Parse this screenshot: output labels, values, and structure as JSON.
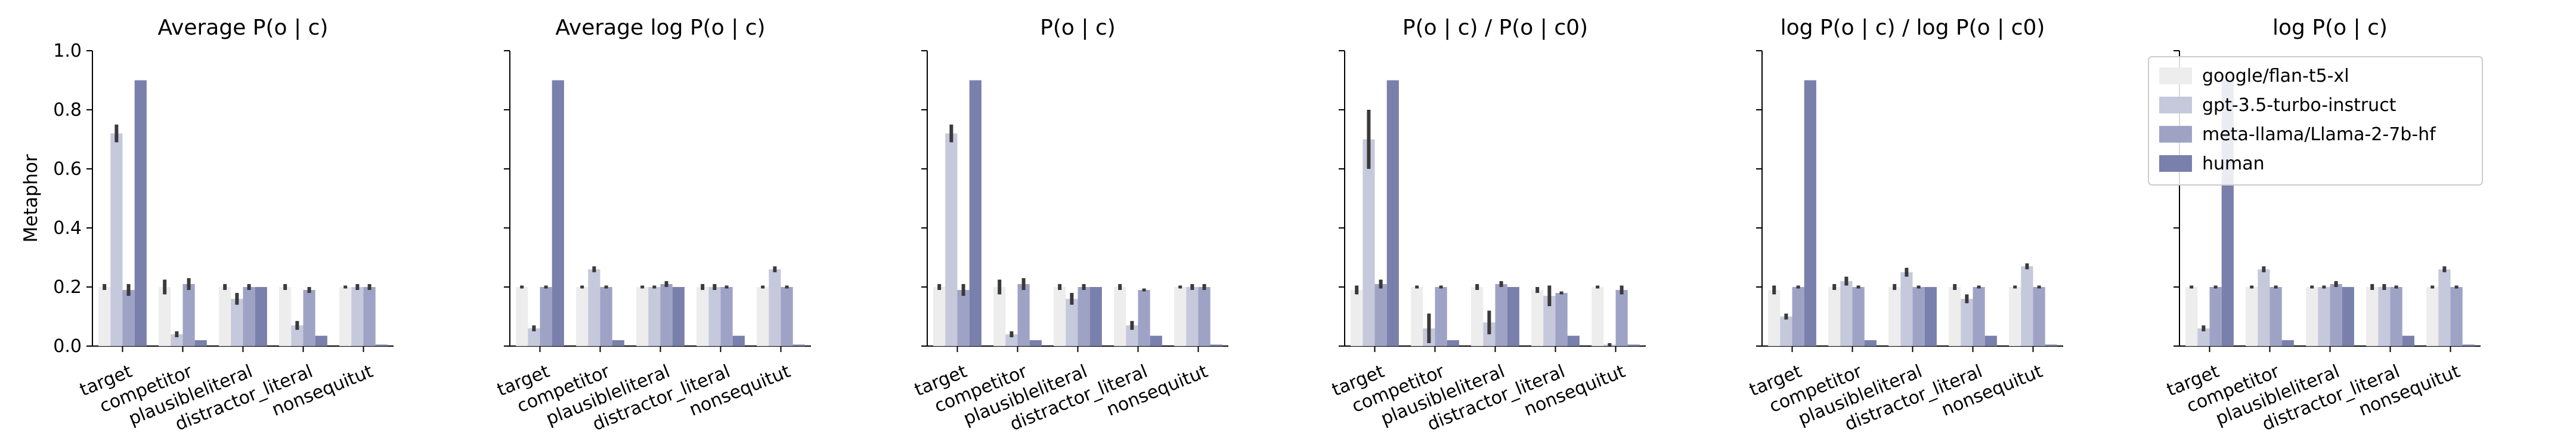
{
  "chart_data": {
    "type": "bar",
    "ylabel": "Metaphor",
    "ylim": [
      0,
      1.0
    ],
    "yticks": [
      "0.0",
      "0.2",
      "0.4",
      "0.6",
      "0.8",
      "1.0"
    ],
    "categories": [
      "target",
      "competitor",
      "plausibleliteral",
      "distractor_literal",
      "nonsequitur"
    ],
    "category_tick_labels": [
      "target",
      "competitor",
      "plausibleliteral",
      "distractor_literal",
      "nonsequitut"
    ],
    "grid": false,
    "legend": {
      "placement": "top-right of last panel",
      "entries": [
        "google/flan-t5-xl",
        "gpt-3.5-turbo-instruct",
        "meta-llama/Llama-2-7b-hf",
        "human"
      ]
    },
    "colors": {
      "google/flan-t5-xl": "#ededee",
      "gpt-3.5-turbo-instruct": "#c6c8dc",
      "meta-llama/Llama-2-7b-hf": "#9ea3c6",
      "human": "#7a80ac"
    },
    "panels": [
      {
        "title": "Average P(o | c)",
        "series": [
          {
            "name": "google/flan-t5-xl",
            "values": [
              0.2,
              0.2,
              0.2,
              0.2,
              0.2
            ],
            "err": [
              0.01,
              0.025,
              0.01,
              0.01,
              0.005
            ]
          },
          {
            "name": "gpt-3.5-turbo-instruct",
            "values": [
              0.72,
              0.04,
              0.16,
              0.07,
              0.2
            ],
            "err": [
              0.03,
              0.01,
              0.02,
              0.015,
              0.01
            ]
          },
          {
            "name": "meta-llama/Llama-2-7b-hf",
            "values": [
              0.19,
              0.21,
              0.2,
              0.19,
              0.2
            ],
            "err": [
              0.02,
              0.02,
              0.01,
              0.01,
              0.01
            ]
          },
          {
            "name": "human",
            "values": [
              0.9,
              0.02,
              0.2,
              0.035,
              0.005
            ],
            "err": [
              0,
              0,
              0,
              0,
              0
            ]
          }
        ]
      },
      {
        "title": "Average log P(o | c)",
        "series": [
          {
            "name": "google/flan-t5-xl",
            "values": [
              0.2,
              0.2,
              0.2,
              0.2,
              0.2
            ],
            "err": [
              0.005,
              0.005,
              0.005,
              0.01,
              0.005
            ]
          },
          {
            "name": "gpt-3.5-turbo-instruct",
            "values": [
              0.06,
              0.26,
              0.2,
              0.2,
              0.26
            ],
            "err": [
              0.01,
              0.01,
              0.005,
              0.01,
              0.01
            ]
          },
          {
            "name": "meta-llama/Llama-2-7b-hf",
            "values": [
              0.2,
              0.2,
              0.21,
              0.2,
              0.2
            ],
            "err": [
              0.005,
              0.005,
              0.01,
              0.005,
              0.005
            ]
          },
          {
            "name": "human",
            "values": [
              0.9,
              0.02,
              0.2,
              0.035,
              0.005
            ],
            "err": [
              0,
              0,
              0,
              0,
              0
            ]
          }
        ]
      },
      {
        "title": "P(o | c)",
        "series": [
          {
            "name": "google/flan-t5-xl",
            "values": [
              0.2,
              0.2,
              0.2,
              0.2,
              0.2
            ],
            "err": [
              0.01,
              0.025,
              0.01,
              0.01,
              0.005
            ]
          },
          {
            "name": "gpt-3.5-turbo-instruct",
            "values": [
              0.72,
              0.04,
              0.16,
              0.07,
              0.2
            ],
            "err": [
              0.03,
              0.01,
              0.02,
              0.015,
              0.01
            ]
          },
          {
            "name": "meta-llama/Llama-2-7b-hf",
            "values": [
              0.19,
              0.21,
              0.2,
              0.19,
              0.2
            ],
            "err": [
              0.02,
              0.02,
              0.01,
              0.005,
              0.01
            ]
          },
          {
            "name": "human",
            "values": [
              0.9,
              0.02,
              0.2,
              0.035,
              0.005
            ],
            "err": [
              0,
              0,
              0,
              0,
              0
            ]
          }
        ]
      },
      {
        "title": "P(o | c) / P(o | c0)",
        "series": [
          {
            "name": "google/flan-t5-xl",
            "values": [
              0.19,
              0.2,
              0.2,
              0.19,
              0.2
            ],
            "err": [
              0.015,
              0.005,
              0.01,
              0.01,
              0.005
            ]
          },
          {
            "name": "gpt-3.5-turbo-instruct",
            "values": [
              0.7,
              0.06,
              0.08,
              0.17,
              0.005
            ],
            "err": [
              0.1,
              0.05,
              0.04,
              0.035,
              0.005
            ]
          },
          {
            "name": "meta-llama/Llama-2-7b-hf",
            "values": [
              0.21,
              0.2,
              0.21,
              0.18,
              0.19
            ],
            "err": [
              0.015,
              0.005,
              0.01,
              0.005,
              0.015
            ]
          },
          {
            "name": "human",
            "values": [
              0.9,
              0.02,
              0.2,
              0.035,
              0.005
            ],
            "err": [
              0,
              0,
              0,
              0,
              0
            ]
          }
        ]
      },
      {
        "title": "log P(o | c) / log P(o | c0)",
        "series": [
          {
            "name": "google/flan-t5-xl",
            "values": [
              0.19,
              0.2,
              0.2,
              0.2,
              0.2
            ],
            "err": [
              0.015,
              0.01,
              0.01,
              0.01,
              0.005
            ]
          },
          {
            "name": "gpt-3.5-turbo-instruct",
            "values": [
              0.1,
              0.22,
              0.25,
              0.16,
              0.27
            ],
            "err": [
              0.01,
              0.015,
              0.015,
              0.015,
              0.01
            ]
          },
          {
            "name": "meta-llama/Llama-2-7b-hf",
            "values": [
              0.2,
              0.2,
              0.2,
              0.2,
              0.2
            ],
            "err": [
              0.005,
              0.005,
              0.005,
              0.005,
              0.005
            ]
          },
          {
            "name": "human",
            "values": [
              0.9,
              0.02,
              0.2,
              0.035,
              0.005
            ],
            "err": [
              0,
              0,
              0,
              0,
              0
            ]
          }
        ]
      },
      {
        "title": "log P(o | c)",
        "series": [
          {
            "name": "google/flan-t5-xl",
            "values": [
              0.2,
              0.2,
              0.2,
              0.2,
              0.2
            ],
            "err": [
              0.005,
              0.005,
              0.005,
              0.01,
              0.005
            ]
          },
          {
            "name": "gpt-3.5-turbo-instruct",
            "values": [
              0.06,
              0.26,
              0.2,
              0.2,
              0.26
            ],
            "err": [
              0.01,
              0.01,
              0.005,
              0.01,
              0.01
            ]
          },
          {
            "name": "meta-llama/Llama-2-7b-hf",
            "values": [
              0.2,
              0.2,
              0.21,
              0.2,
              0.2
            ],
            "err": [
              0.005,
              0.005,
              0.01,
              0.005,
              0.005
            ]
          },
          {
            "name": "human",
            "values": [
              0.9,
              0.02,
              0.2,
              0.035,
              0.005
            ],
            "err": [
              0,
              0,
              0,
              0,
              0
            ]
          }
        ]
      }
    ]
  }
}
